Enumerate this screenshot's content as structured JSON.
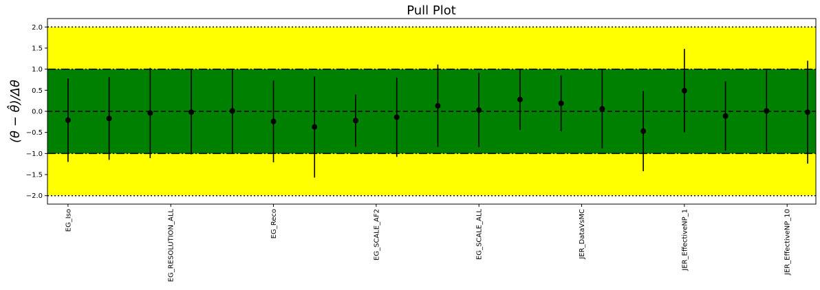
{
  "chart_data": {
    "type": "scatter",
    "title": "Pull Plot",
    "ylabel": "(θ − θ̂)/Δθ",
    "xlabel": "",
    "ylim": [
      -2.2,
      2.2
    ],
    "yticks": [
      2.0,
      1.5,
      1.0,
      0.5,
      0.0,
      -0.5,
      -1.0,
      -1.5,
      -2.0
    ],
    "ytick_labels": [
      "2.0",
      "1.5",
      "1.0",
      "0.5",
      "0.0",
      "−0.5",
      "−1.0",
      "−1.5",
      "−2.0"
    ],
    "x_tick_labels": [
      {
        "index": 0,
        "label": "EG_Iso"
      },
      {
        "index": 2.5,
        "label": "EG_RESOLUTION_ALL"
      },
      {
        "index": 5,
        "label": "EG_Reco"
      },
      {
        "index": 7.5,
        "label": "EG_SCALE_AF2"
      },
      {
        "index": 10,
        "label": "EG_SCALE_ALL"
      },
      {
        "index": 12.5,
        "label": "JER_DataVsMC"
      },
      {
        "index": 15,
        "label": "JER_EffectiveNP_1"
      },
      {
        "index": 17.5,
        "label": "JER_EffectiveNP_10"
      }
    ],
    "xlim": [
      -0.5,
      18.2
    ],
    "points": [
      {
        "x": 0,
        "y": -0.21,
        "err": 0.99
      },
      {
        "x": 1,
        "y": -0.17,
        "err": 0.98
      },
      {
        "x": 2,
        "y": -0.04,
        "err": 1.07
      },
      {
        "x": 3,
        "y": -0.02,
        "err": 1.0
      },
      {
        "x": 4,
        "y": 0.01,
        "err": 1.0
      },
      {
        "x": 5,
        "y": -0.24,
        "err": 0.97
      },
      {
        "x": 6,
        "y": -0.37,
        "err": 1.2
      },
      {
        "x": 7,
        "y": -0.22,
        "err": 0.62
      },
      {
        "x": 8,
        "y": -0.14,
        "err": 0.94
      },
      {
        "x": 9,
        "y": 0.13,
        "err": 0.98
      },
      {
        "x": 10,
        "y": 0.03,
        "err": 0.88
      },
      {
        "x": 11,
        "y": 0.28,
        "err": 0.72
      },
      {
        "x": 12,
        "y": 0.19,
        "err": 0.66
      },
      {
        "x": 13,
        "y": 0.06,
        "err": 0.94
      },
      {
        "x": 14,
        "y": -0.47,
        "err": 0.95
      },
      {
        "x": 15,
        "y": 0.49,
        "err": 0.99
      },
      {
        "x": 16,
        "y": -0.11,
        "err": 0.82
      },
      {
        "x": 17,
        "y": 0.01,
        "err": 0.97
      },
      {
        "x": 18,
        "y": -0.02,
        "err": 1.22
      }
    ],
    "bands": [
      {
        "name": "2sigma",
        "low": -2,
        "high": 2,
        "color": "#ffff00"
      },
      {
        "name": "1sigma",
        "low": -1,
        "high": 1,
        "color": "#008000"
      }
    ],
    "reference_lines": [
      {
        "y": 2,
        "style": "dotted"
      },
      {
        "y": 1,
        "style": "dashdot"
      },
      {
        "y": 0,
        "style": "dashed"
      },
      {
        "y": -1,
        "style": "dashdot"
      },
      {
        "y": -2,
        "style": "dotted"
      }
    ],
    "colors": {
      "point": "#000000",
      "band2": "#ffff00",
      "band1": "#008000"
    },
    "grid": false,
    "legend": "none"
  }
}
